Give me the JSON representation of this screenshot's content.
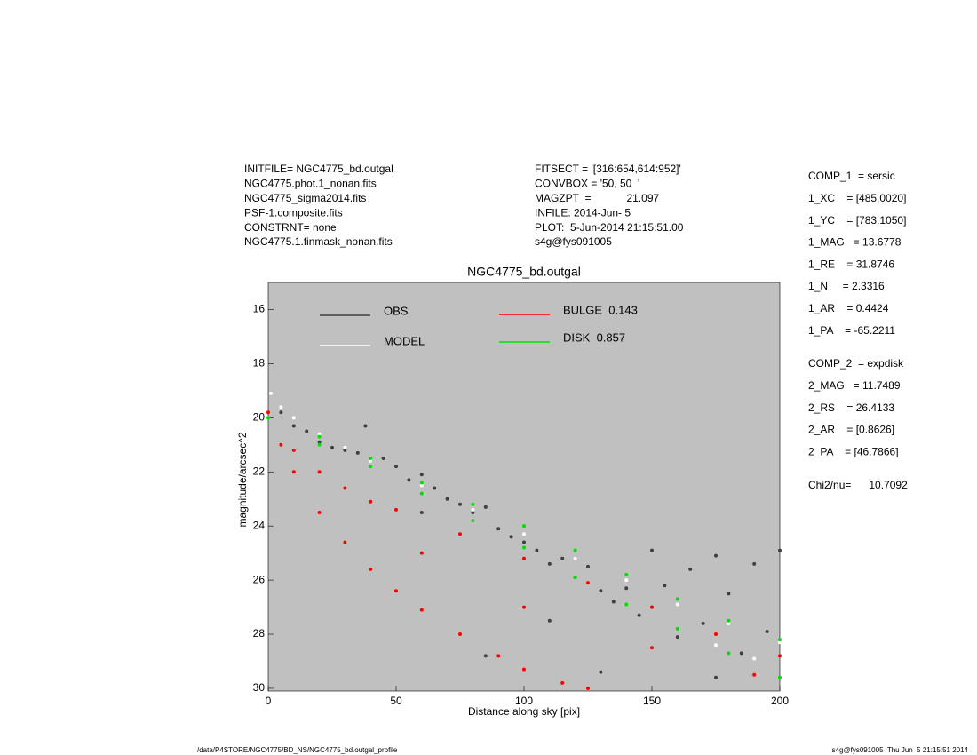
{
  "chart_data": {
    "type": "scatter",
    "title": "NGC4775_bd.outgal",
    "x_label": "Distance along sky [pix]",
    "y_label": "magnitude/arcsec^2",
    "xlim": [
      0,
      200
    ],
    "xticks": [
      0,
      50,
      100,
      150,
      200
    ],
    "ylim": [
      30.1,
      15
    ],
    "yticks": [
      16,
      18,
      20,
      22,
      24,
      26,
      28,
      30
    ],
    "background": "#c0c0c0",
    "series": [
      {
        "name": "OBS",
        "color": "#404040",
        "x": [
          5,
          10,
          15,
          20,
          25,
          30,
          35,
          38,
          40,
          45,
          50,
          55,
          60,
          65,
          70,
          75,
          80,
          85,
          90,
          95,
          100,
          105,
          110,
          115,
          120,
          125,
          130,
          135,
          140,
          145,
          150,
          155,
          160,
          165,
          170,
          175,
          180,
          185,
          190,
          195,
          200,
          60,
          110,
          85,
          130,
          150,
          175
        ],
        "y": [
          19.8,
          20.3,
          20.5,
          20.9,
          21.1,
          21.2,
          21.3,
          20.3,
          21.6,
          21.5,
          21.8,
          22.3,
          22.1,
          22.6,
          23.0,
          23.2,
          23.5,
          23.3,
          24.1,
          24.4,
          24.6,
          24.9,
          25.4,
          25.2,
          25.9,
          25.5,
          26.4,
          26.8,
          26.3,
          27.3,
          27.0,
          26.2,
          28.1,
          25.6,
          27.6,
          25.1,
          26.5,
          28.7,
          25.4,
          27.9,
          24.9,
          23.5,
          27.5,
          28.8,
          29.4,
          24.9,
          29.6
        ]
      },
      {
        "name": "MODEL",
        "color": "#ffffff",
        "x": [
          1,
          5,
          10,
          20,
          30,
          40,
          60,
          80,
          100,
          120,
          140,
          160,
          180,
          200,
          190,
          175
        ],
        "y": [
          19.1,
          19.6,
          20.0,
          20.6,
          21.1,
          21.6,
          22.5,
          23.4,
          24.3,
          25.2,
          26.0,
          26.9,
          27.6,
          28.3,
          28.9,
          28.4
        ]
      },
      {
        "name": "BULGE  0.143",
        "color": "#ff0000",
        "x": [
          0,
          5,
          10,
          20,
          30,
          40,
          50,
          60,
          75,
          90,
          100,
          115,
          125,
          10,
          20,
          30,
          40,
          50,
          75,
          100,
          125,
          150,
          175,
          200,
          60,
          100,
          150,
          190
        ],
        "y": [
          19.8,
          21.0,
          22.0,
          23.5,
          24.6,
          25.6,
          26.4,
          27.1,
          28.0,
          28.8,
          29.3,
          29.8,
          30.0,
          21.2,
          22.0,
          22.6,
          23.1,
          23.4,
          24.3,
          25.2,
          26.1,
          27.0,
          28.0,
          28.8,
          25.0,
          27.0,
          28.5,
          29.5
        ]
      },
      {
        "name": "DISK  0.857",
        "color": "#00e000",
        "x": [
          0,
          20,
          40,
          60,
          80,
          100,
          120,
          140,
          160,
          180,
          200,
          20,
          40,
          60,
          80,
          100,
          120,
          140,
          160,
          180,
          200
        ],
        "y": [
          20.0,
          20.7,
          21.5,
          22.4,
          23.2,
          24.0,
          24.9,
          25.8,
          26.7,
          27.5,
          28.2,
          21.0,
          21.8,
          22.8,
          23.8,
          24.8,
          25.9,
          26.9,
          27.8,
          28.7,
          29.6
        ]
      }
    ],
    "header_left": [
      "INITFILE= NGC4775_bd.outgal",
      "NGC4775.phot.1_nonan.fits",
      "NGC4775_sigma2014.fits",
      "PSF-1.composite.fits",
      "CONSTRNT= none",
      "NGC4775.1.finmask_nonan.fits"
    ],
    "header_mid": [
      "FITSECT = '[316:654,614:952]'",
      "CONVBOX = '50, 50  '",
      "MAGZPT  =            21.097",
      "INFILE: 2014-Jun- 5",
      "PLOT:  5-Jun-2014 21:15:51.00",
      "s4g@fys091005"
    ],
    "params_1": [
      "COMP_1  = sersic",
      "1_XC    = [485.0020]",
      "1_YC    = [783.1050]",
      "1_MAG   = 13.6778",
      "1_RE    = 31.8746",
      "1_N     = 2.3316",
      "1_AR    = 0.4424",
      "1_PA    = -65.2211"
    ],
    "params_2": [
      "COMP_2  = expdisk",
      "2_MAG   = 11.7489",
      "2_RS    = 26.4133",
      "2_AR    = [0.8626]",
      "2_PA    = [46.7866]"
    ],
    "chi": "Chi2/nu=      10.7092",
    "footer_left": "/data/P4STORE/NGC4775/BD_NS/NGC4775_bd.outgal_profile",
    "footer_right": "s4g@fys091005  Thu Jun  5 21:15:51 2014"
  }
}
